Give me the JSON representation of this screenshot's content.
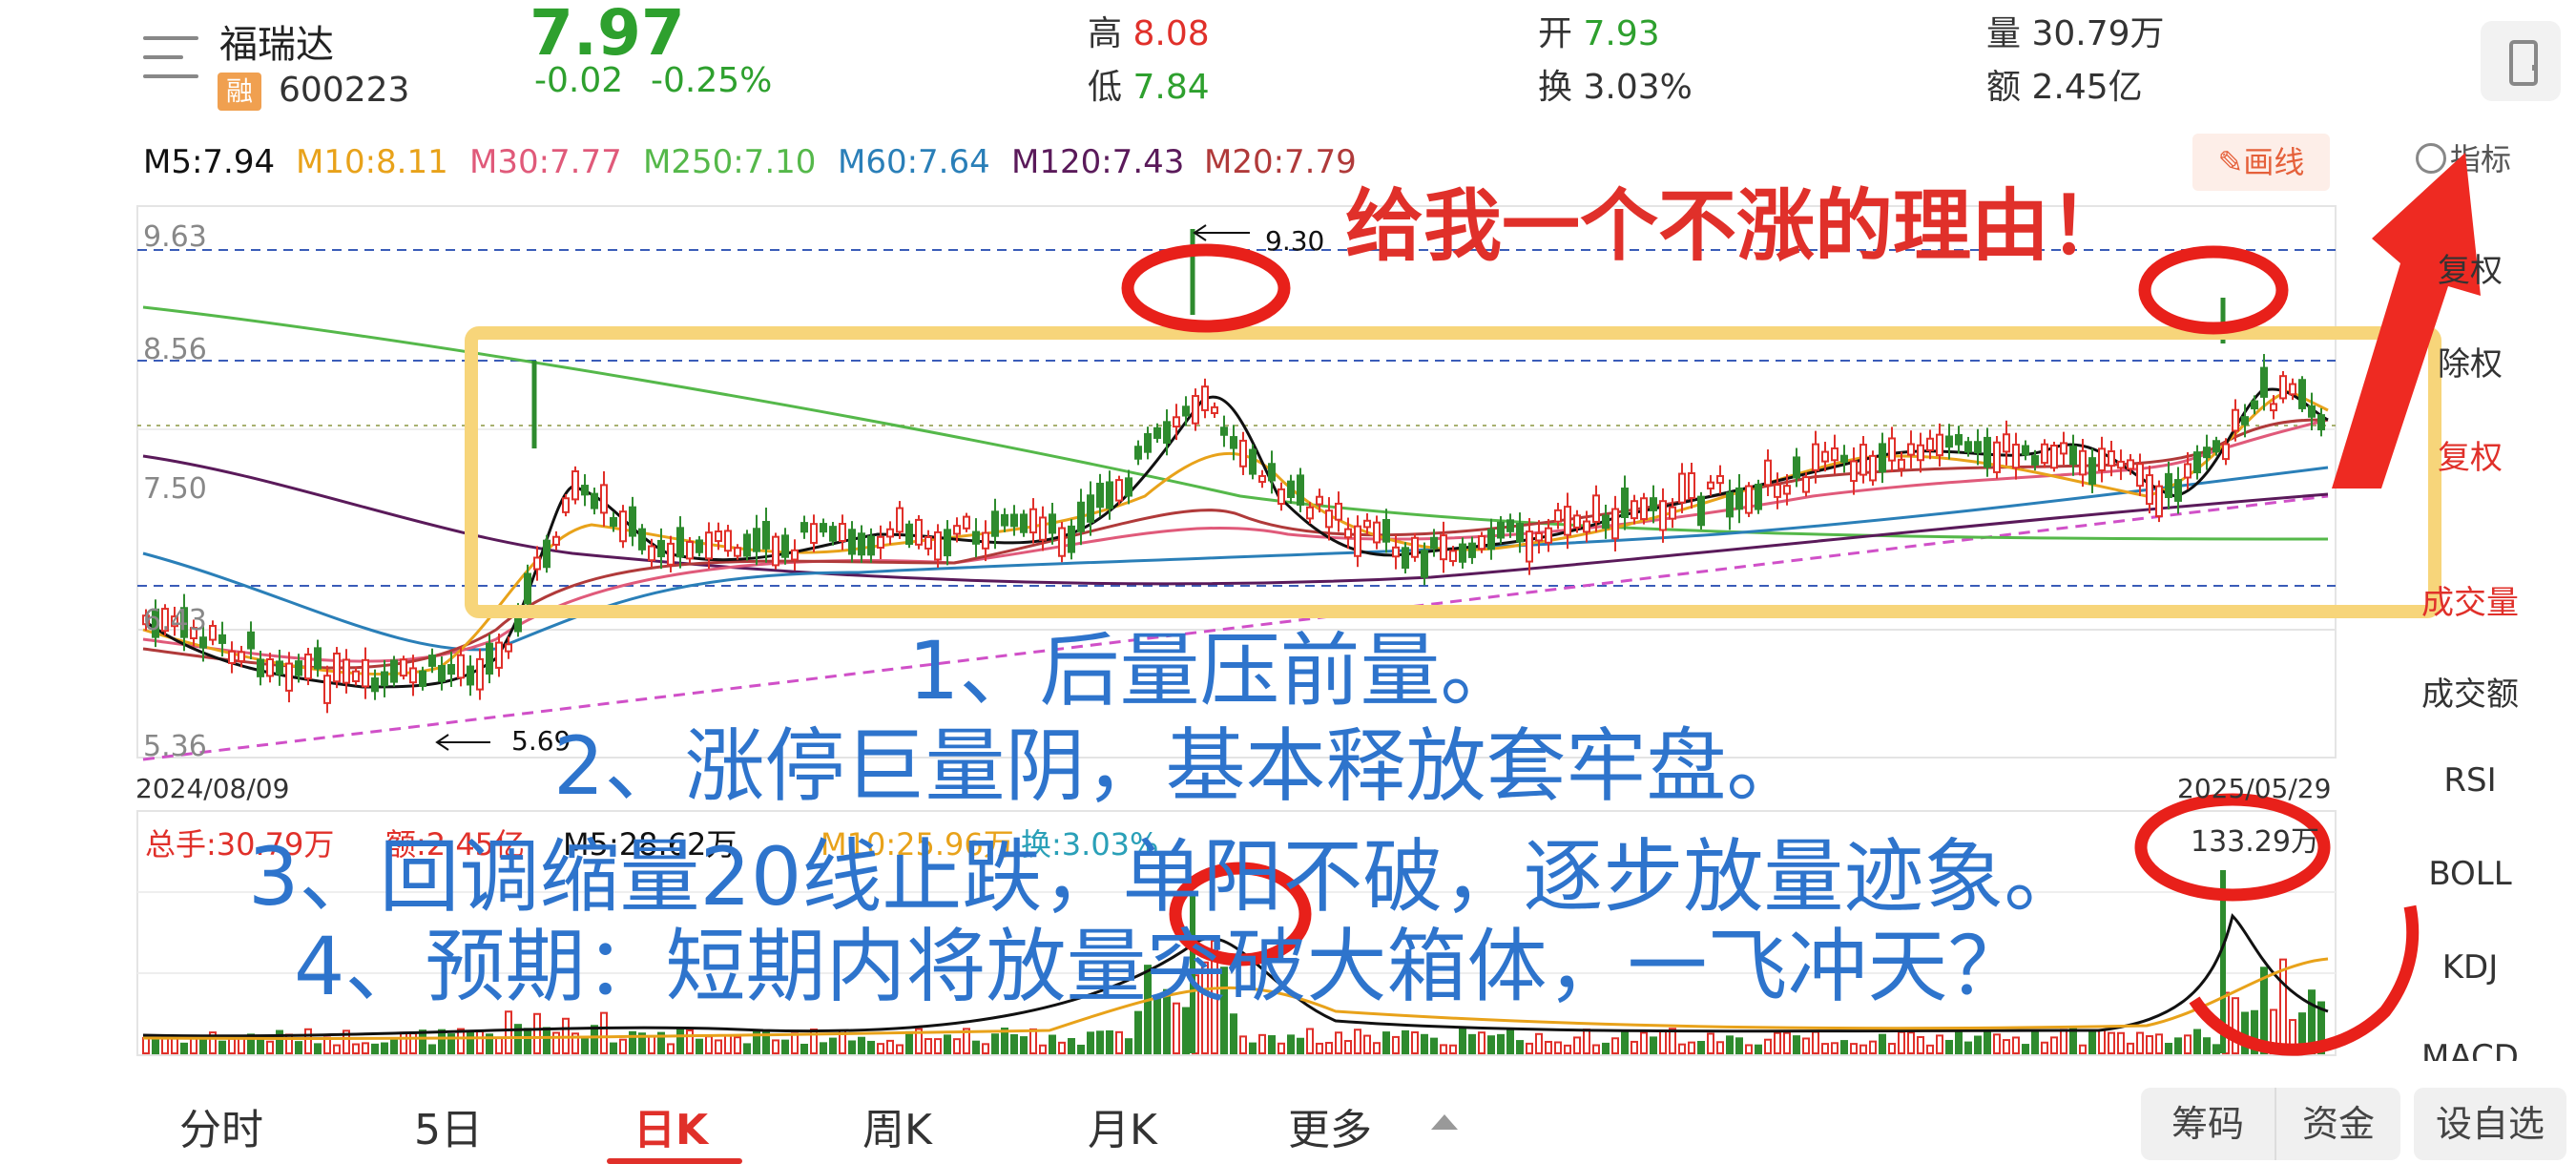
{
  "stock": {
    "name": "福瑞达",
    "margin_tag": "融",
    "code": "600223",
    "price": "7.97",
    "change": "-0.02",
    "change_pct": "-0.25%"
  },
  "quote": {
    "high_label": "高",
    "high": "8.08",
    "low_label": "低",
    "low": "7.84",
    "open_label": "开",
    "open": "7.93",
    "turnover_label": "换",
    "turnover": "3.03%",
    "volume_label": "量",
    "volume": "30.79万",
    "amount_label": "额",
    "amount": "2.45亿"
  },
  "ma_legend": [
    {
      "text": "M5:7.94",
      "color": "#111111"
    },
    {
      "text": "M10:8.11",
      "color": "#e8a21a"
    },
    {
      "text": "M30:7.77",
      "color": "#e05a7a"
    },
    {
      "text": "M250:7.10",
      "color": "#55b84a"
    },
    {
      "text": "M60:7.64",
      "color": "#2a7fb8"
    },
    {
      "text": "M120:7.43",
      "color": "#5a1a5a"
    },
    {
      "text": "M20:7.79",
      "color": "#b03a3a"
    }
  ],
  "toolbar": {
    "draw_label": "画线",
    "indicator_label": "指标"
  },
  "side_menu": {
    "items": [
      "复权",
      "除权",
      "复权",
      "成交量",
      "成交额",
      "RSI",
      "BOLL",
      "KDJ",
      "MACD"
    ]
  },
  "chart_labels": {
    "price_top": "9.63",
    "price_mid_high": "8.56",
    "price_mid": "7.50",
    "price_low_area": "6.43",
    "price_bottom": "5.36",
    "peak_label": "9.30",
    "trough_label": "5.69",
    "date_start": "2024/08/09",
    "date_end": "2025/05/29",
    "volume_peak": "133.29万"
  },
  "volume_legend": {
    "total": "总手:30.79万",
    "amount": "额:2.45亿",
    "m5": "M5:28.62万",
    "m10": "M10:25.96万",
    "turn": "换:3.03%"
  },
  "tabs": [
    "分时",
    "5日",
    "日K",
    "周K",
    "月K",
    "更多"
  ],
  "active_tab": "日K",
  "buttons": {
    "chips": "筹码",
    "funds": "资金",
    "add_watch": "设自选"
  },
  "annotations": {
    "headline": "给我一个不涨的理由！",
    "line1": "1、后量压前量。",
    "line2": "2、涨停巨量阴，基本释放套牢盘。",
    "line3": "3、回调缩量20线止跌，单阳不破，逐步放量迹象。",
    "line4": "4、预期：短期内将放量突破大箱体，一飞冲天？"
  },
  "colors": {
    "up": "#e0302a",
    "down": "#2e8b2e",
    "box": "#f7d57a",
    "annotation_blue": "#2e74cc",
    "annotation_red": "#e0302a"
  }
}
